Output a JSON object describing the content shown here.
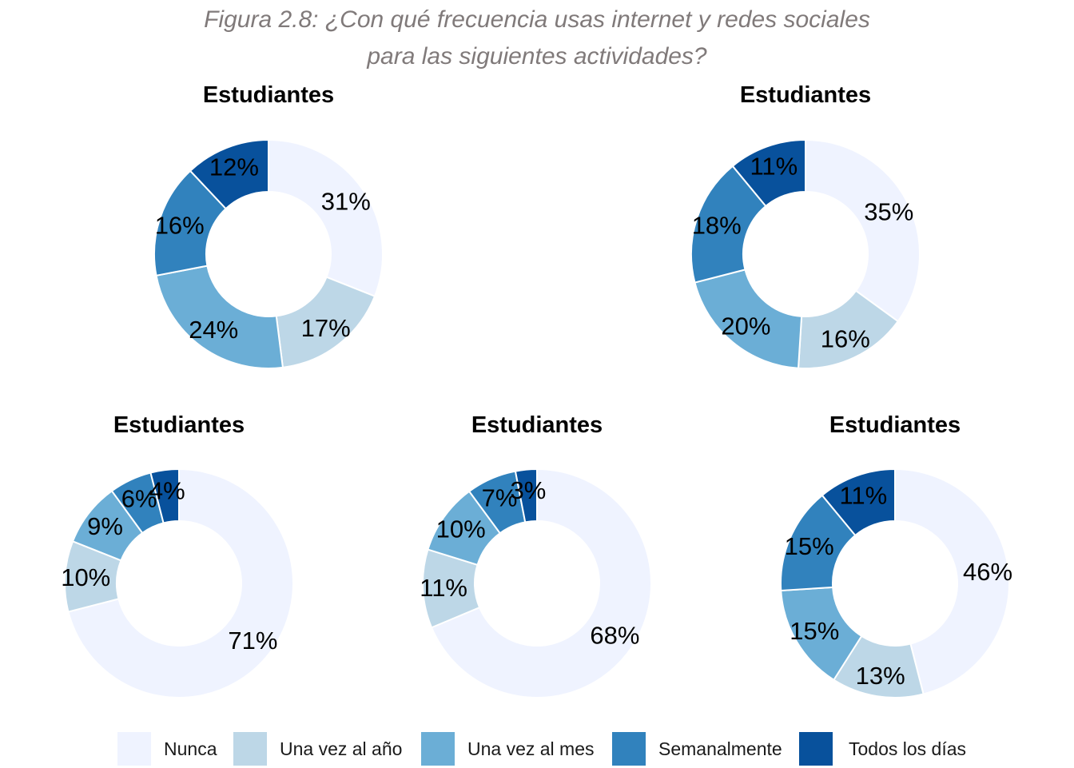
{
  "title_lines": [
    "Figura 2.8: ¿Con qué frecuencia usas internet y redes sociales",
    "para las siguientes actividades?"
  ],
  "colors": {
    "Nunca": "#eff3ff",
    "Una vez al año": "#bdd7e7",
    "Una vez al mes": "#6baed6",
    "Semanalmente": "#3182bd",
    "Todos los días": "#08519c"
  },
  "chart_data": [
    {
      "type": "pie",
      "title": "Estudiantes",
      "categories": [
        "Nunca",
        "Una vez al año",
        "Una vez al mes",
        "Semanalmente",
        "Todos los días"
      ],
      "values": [
        31,
        17,
        24,
        16,
        12
      ],
      "labels": [
        "31%",
        "17%",
        "24%",
        "16%",
        "12%"
      ]
    },
    {
      "type": "pie",
      "title": "Estudiantes",
      "categories": [
        "Nunca",
        "Una vez al año",
        "Una vez al mes",
        "Semanalmente",
        "Todos los días"
      ],
      "values": [
        35,
        16,
        20,
        18,
        11
      ],
      "labels": [
        "35%",
        "16%",
        "20%",
        "18%",
        "11%"
      ]
    },
    {
      "type": "pie",
      "title": "Estudiantes",
      "categories": [
        "Nunca",
        "Una vez al año",
        "Una vez al mes",
        "Semanalmente",
        "Todos los días"
      ],
      "values": [
        71,
        10,
        9,
        6,
        4
      ],
      "labels": [
        "71%",
        "10%",
        "9%",
        "6%",
        "4%"
      ]
    },
    {
      "type": "pie",
      "title": "Estudiantes",
      "categories": [
        "Nunca",
        "Una vez al año",
        "Una vez al mes",
        "Semanalmente",
        "Todos los días"
      ],
      "values": [
        68,
        11,
        10,
        7,
        3
      ],
      "labels": [
        "68%",
        "11%",
        "10%",
        "7%",
        "3%"
      ]
    },
    {
      "type": "pie",
      "title": "Estudiantes",
      "categories": [
        "Nunca",
        "Una vez al año",
        "Una vez al mes",
        "Semanalmente",
        "Todos los días"
      ],
      "values": [
        46,
        13,
        15,
        15,
        11
      ],
      "labels": [
        "46%",
        "13%",
        "15%",
        "15%",
        "11%"
      ]
    }
  ],
  "legend": {
    "placement": "bottom",
    "items": [
      "Nunca",
      "Una vez al año",
      "Una vez al mes",
      "Semanalmente",
      "Todos los días"
    ]
  }
}
